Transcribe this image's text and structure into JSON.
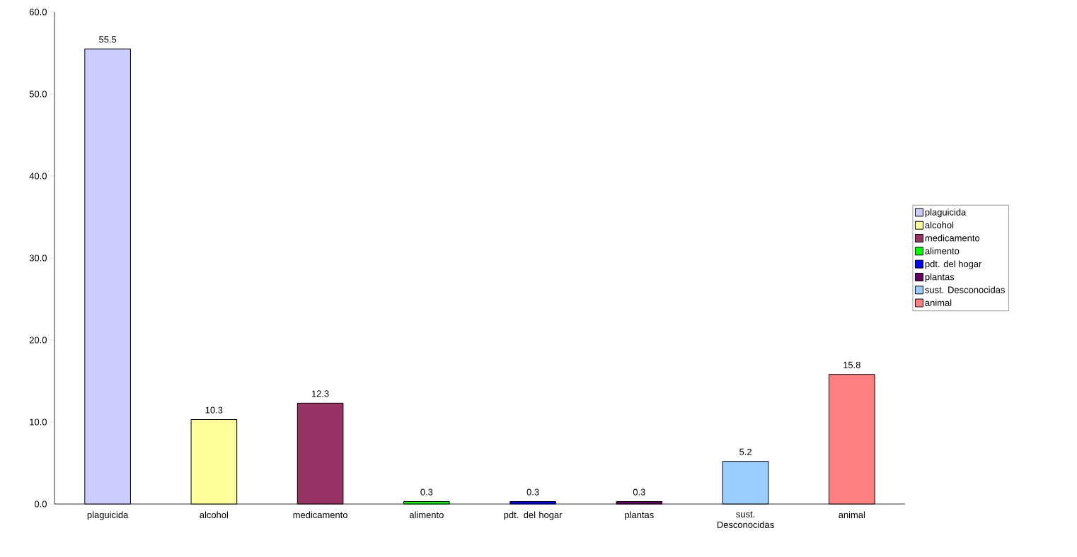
{
  "chart_data": {
    "type": "bar",
    "categories": [
      "plaguicida",
      "alcohol",
      "medicamento",
      "alimento",
      "pdt. del hogar",
      "plantas",
      "sust. Desconocidas",
      "animal"
    ],
    "series": [
      {
        "name": "plaguicida",
        "color": "#ccccff",
        "values": [
          55.5,
          null,
          null,
          null,
          null,
          null,
          null,
          null
        ]
      },
      {
        "name": "alcohol",
        "color": "#ffff99",
        "values": [
          null,
          10.3,
          null,
          null,
          null,
          null,
          null,
          null
        ]
      },
      {
        "name": "medicamento",
        "color": "#993366",
        "values": [
          null,
          null,
          12.3,
          null,
          null,
          null,
          null,
          null
        ]
      },
      {
        "name": "alimento",
        "color": "#00ff00",
        "values": [
          null,
          null,
          null,
          0.3,
          null,
          null,
          null,
          null
        ]
      },
      {
        "name": "pdt. del hogar",
        "color": "#0000ff",
        "values": [
          null,
          null,
          null,
          null,
          0.3,
          null,
          null,
          null
        ]
      },
      {
        "name": "plantas",
        "color": "#660066",
        "values": [
          null,
          null,
          null,
          null,
          null,
          0.3,
          null,
          null
        ]
      },
      {
        "name": "sust. Desconocidas",
        "color": "#99ccff",
        "values": [
          null,
          null,
          null,
          null,
          null,
          null,
          5.2,
          null
        ]
      },
      {
        "name": "animal",
        "color": "#ff8080",
        "values": [
          null,
          null,
          null,
          null,
          null,
          null,
          null,
          15.8
        ]
      }
    ],
    "ylim": [
      0,
      60
    ],
    "yticks": [
      {
        "value": 0,
        "label": "0.0"
      },
      {
        "value": 10,
        "label": "10.0"
      },
      {
        "value": 20,
        "label": "20.0"
      },
      {
        "value": 30,
        "label": "30.0"
      },
      {
        "value": 40,
        "label": "40.0"
      },
      {
        "value": 50,
        "label": "50.0"
      },
      {
        "value": 60,
        "label": "60.0"
      }
    ],
    "data_labels": true,
    "legend": "right"
  }
}
